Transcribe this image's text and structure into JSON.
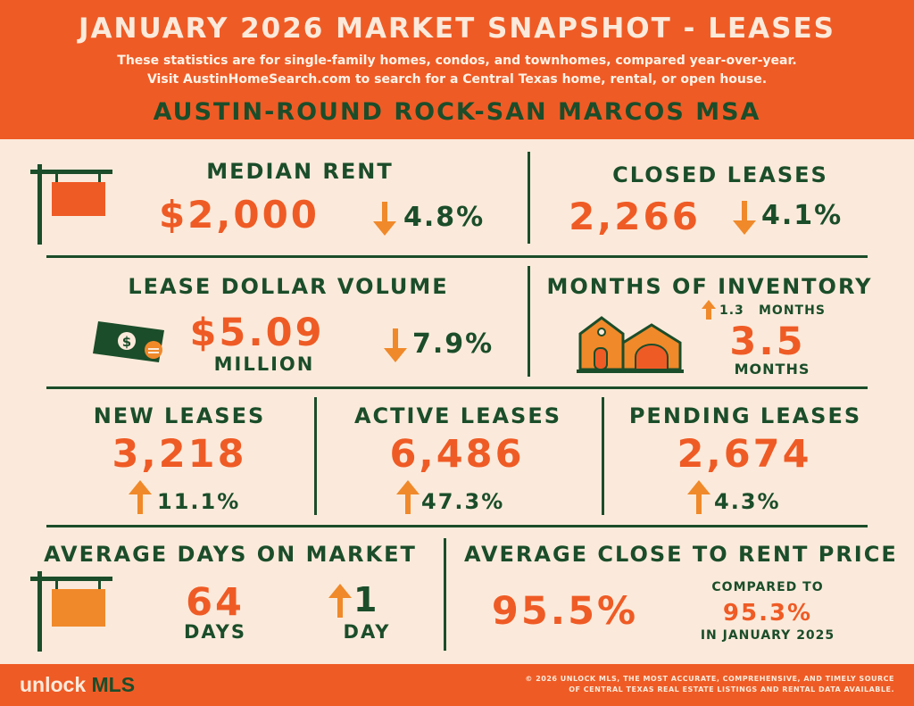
{
  "header": {
    "title": "JANUARY 2026 MARKET SNAPSHOT - LEASES",
    "subtitle_line1": "These statistics are for single-family homes, condos, and townhomes, compared year-over-year.",
    "subtitle_line2": "Visit AustinHomeSearch.com to search for a Central Texas home, rental, or open house.",
    "region": "AUSTIN-ROUND ROCK-SAN MARCOS MSA"
  },
  "median_rent": {
    "label": "MEDIAN RENT",
    "value": "$2,000",
    "change": "4.8%",
    "direction": "down"
  },
  "closed_leases": {
    "label": "CLOSED LEASES",
    "value": "2,266",
    "change": "4.1%",
    "direction": "down"
  },
  "lease_dollar_volume": {
    "label": "LEASE DOLLAR VOLUME",
    "value": "$5.09",
    "unit": "MILLION",
    "change": "7.9%",
    "direction": "down"
  },
  "months_of_inventory": {
    "label": "MONTHS OF INVENTORY",
    "change": "1.3",
    "change_unit": "MONTHS",
    "direction": "up",
    "value": "3.5",
    "unit": "MONTHS"
  },
  "new_leases": {
    "label": "NEW LEASES",
    "value": "3,218",
    "change": "11.1%",
    "direction": "up"
  },
  "active_leases": {
    "label": "ACTIVE LEASES",
    "value": "6,486",
    "change": "47.3%",
    "direction": "up"
  },
  "pending_leases": {
    "label": "PENDING LEASES",
    "value": "2,674",
    "change": "4.3%",
    "direction": "up"
  },
  "avg_days_on_market": {
    "label": "AVERAGE DAYS ON MARKET",
    "value": "64",
    "unit": "DAYS",
    "change": "1",
    "change_unit": "DAY",
    "direction": "up"
  },
  "avg_close_to_rent": {
    "label": "AVERAGE CLOSE TO RENT PRICE",
    "value": "95.5%",
    "compared_label": "COMPARED TO",
    "compared_value": "95.3%",
    "compared_period": "IN JANUARY 2025"
  },
  "footer": {
    "logo_unlock": "unlock",
    "logo_mls": "MLS",
    "copyright_line1": "© 2026 UNLOCK MLS, THE MOST ACCURATE, COMPREHENSIVE, AND TIMELY SOURCE",
    "copyright_line2": "OF CENTRAL TEXAS REAL ESTATE LISTINGS AND RENTAL DATA AVAILABLE."
  },
  "colors": {
    "orange": "#ef5b25",
    "green": "#1b4d2a",
    "cream": "#fbeadb",
    "arrow": "#f0892a"
  }
}
